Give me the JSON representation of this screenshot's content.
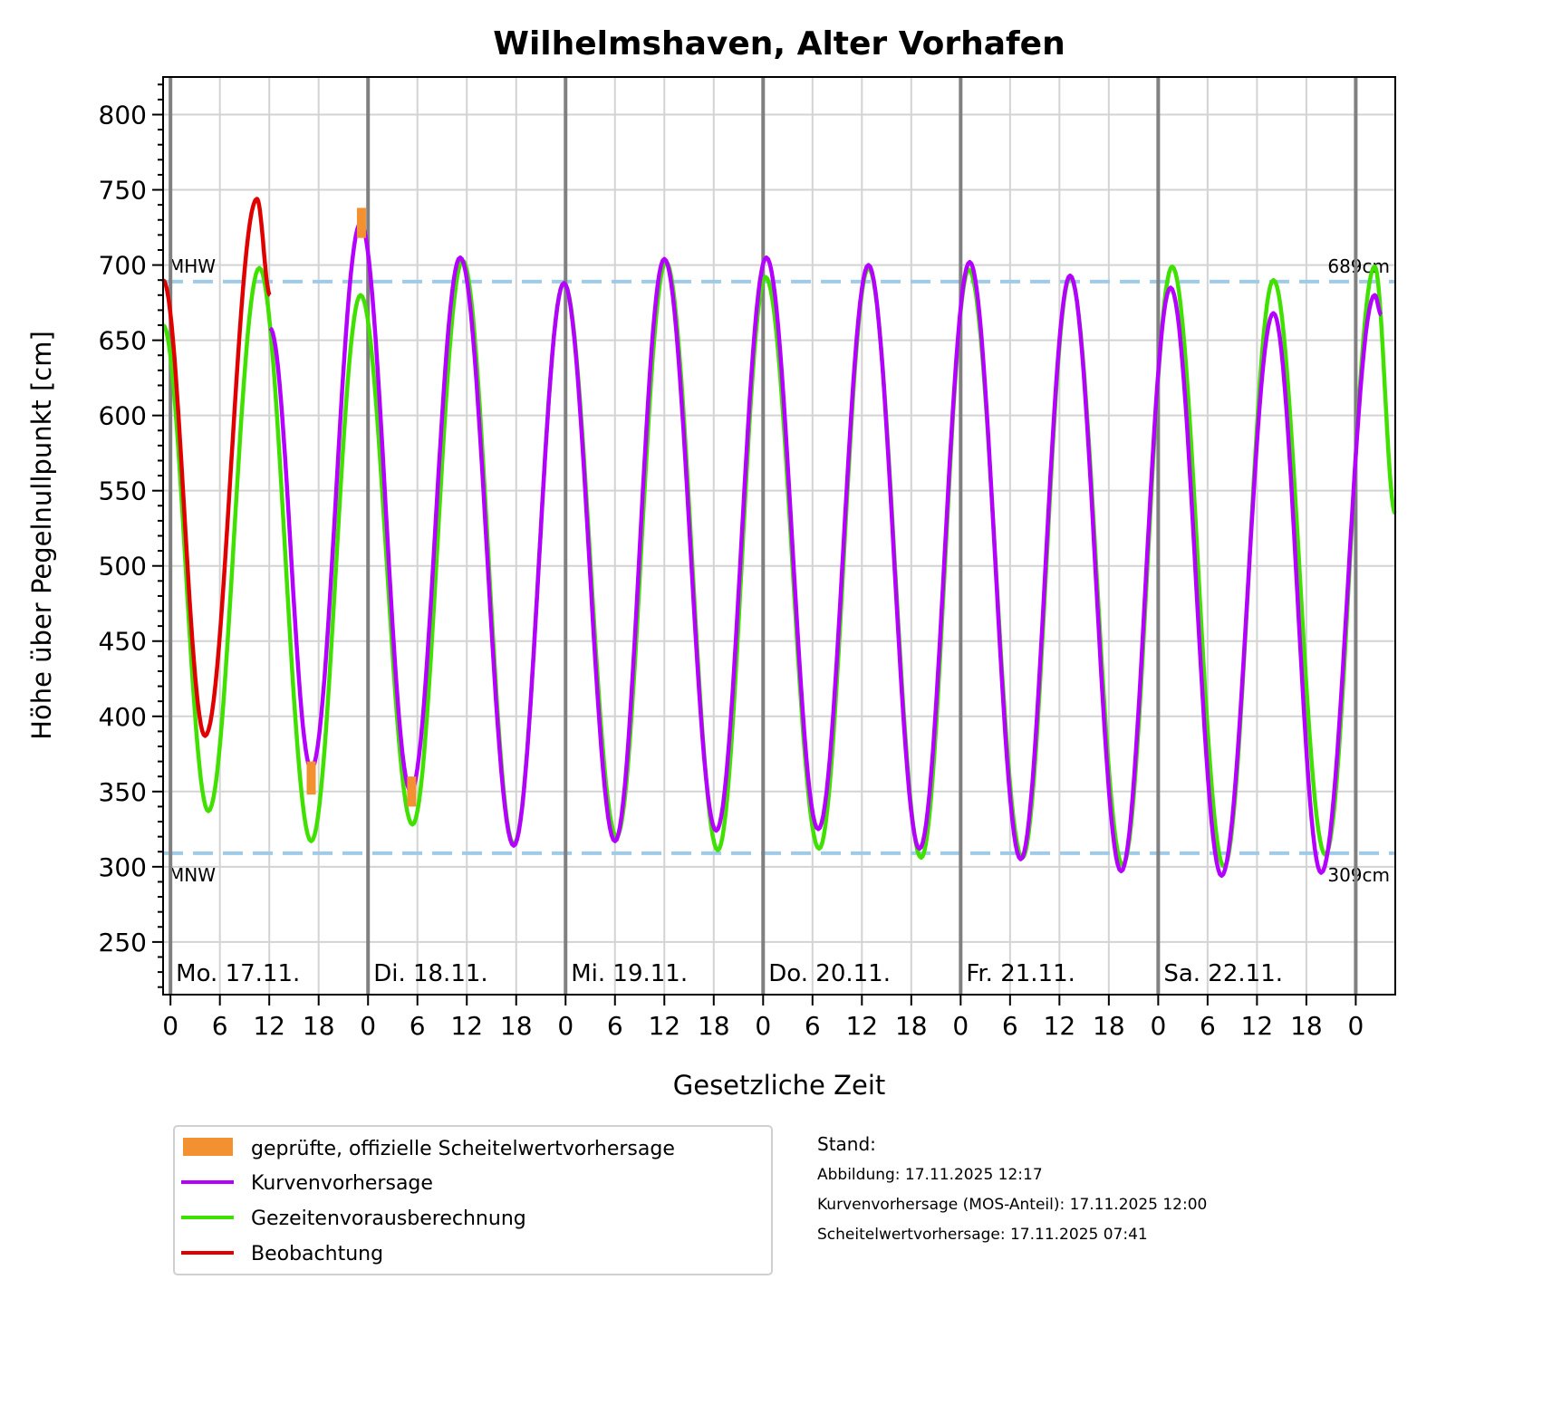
{
  "chart_data": {
    "type": "line",
    "title": "Wilhelmshaven, Alter Vorhafen",
    "xlabel": "Gesetzliche Zeit",
    "ylabel": "Höhe über Pegelnullpunkt [cm]",
    "xlim": [
      "2025-11-16 23:06",
      "2025-11-23 04:48"
    ],
    "ylim": [
      215,
      825
    ],
    "yticks": [
      250,
      300,
      350,
      400,
      450,
      500,
      550,
      600,
      650,
      700,
      750,
      800
    ],
    "y_minor_step": 10,
    "xtick_hours": [
      "0",
      "6",
      "12",
      "18"
    ],
    "day_labels": [
      {
        "date": "2025-11-17",
        "label": "Mo. 17.11."
      },
      {
        "date": "2025-11-18",
        "label": "Di. 18.11."
      },
      {
        "date": "2025-11-19",
        "label": "Mi. 19.11."
      },
      {
        "date": "2025-11-20",
        "label": "Do. 20.11."
      },
      {
        "date": "2025-11-21",
        "label": "Fr. 21.11."
      },
      {
        "date": "2025-11-22",
        "label": "Sa. 22.11."
      },
      {
        "date": "2025-11-23",
        "label": ""
      }
    ],
    "grid": true,
    "reference_lines": [
      {
        "name": "MHW",
        "value": 689,
        "value_label": "689cm",
        "color": "#a0cbe8"
      },
      {
        "name": "MNW",
        "value": 309,
        "value_label": "309cm",
        "color": "#a0cbe8"
      }
    ],
    "series": [
      {
        "name": "Gezeitenvorausberechnung",
        "color": "#40e000",
        "points": [
          [
            "2025-11-16 23:06",
            660
          ],
          [
            "2025-11-17 04:36",
            337
          ],
          [
            "2025-11-17 10:48",
            698
          ],
          [
            "2025-11-17 17:06",
            317
          ],
          [
            "2025-11-17 23:06",
            680
          ],
          [
            "2025-11-18 05:24",
            328
          ],
          [
            "2025-11-18 11:30",
            703
          ],
          [
            "2025-11-18 17:42",
            315
          ],
          [
            "2025-11-18 23:48",
            688
          ],
          [
            "2025-11-19 06:12",
            320
          ],
          [
            "2025-11-19 12:12",
            702
          ],
          [
            "2025-11-19 18:30",
            311
          ],
          [
            "2025-11-20 00:18",
            692
          ],
          [
            "2025-11-20 06:48",
            312
          ],
          [
            "2025-11-20 12:48",
            698
          ],
          [
            "2025-11-20 19:12",
            306
          ],
          [
            "2025-11-21 01:00",
            697
          ],
          [
            "2025-11-21 07:30",
            306
          ],
          [
            "2025-11-21 13:18",
            692
          ],
          [
            "2025-11-21 19:42",
            301
          ],
          [
            "2025-11-22 01:42",
            699
          ],
          [
            "2025-11-22 08:00",
            300
          ],
          [
            "2025-11-22 14:00",
            690
          ],
          [
            "2025-11-22 20:18",
            308
          ],
          [
            "2025-11-23 02:18",
            699
          ],
          [
            "2025-11-23 04:48",
            535
          ]
        ]
      },
      {
        "name": "Kurvenvorhersage",
        "color": "#b400ff",
        "points": [
          [
            "2025-11-17 12:06",
            658
          ],
          [
            "2025-11-17 17:06",
            365
          ],
          [
            "2025-11-17 23:06",
            728
          ],
          [
            "2025-11-18 05:12",
            350
          ],
          [
            "2025-11-18 11:12",
            705
          ],
          [
            "2025-11-18 17:42",
            314
          ],
          [
            "2025-11-18 23:48",
            688
          ],
          [
            "2025-11-19 06:00",
            317
          ],
          [
            "2025-11-19 12:00",
            704
          ],
          [
            "2025-11-19 18:18",
            324
          ],
          [
            "2025-11-20 00:24",
            705
          ],
          [
            "2025-11-20 06:42",
            325
          ],
          [
            "2025-11-20 12:48",
            700
          ],
          [
            "2025-11-20 19:00",
            312
          ],
          [
            "2025-11-21 01:06",
            702
          ],
          [
            "2025-11-21 07:18",
            305
          ],
          [
            "2025-11-21 13:18",
            693
          ],
          [
            "2025-11-21 19:30",
            297
          ],
          [
            "2025-11-22 01:30",
            685
          ],
          [
            "2025-11-22 07:42",
            294
          ],
          [
            "2025-11-22 14:00",
            668
          ],
          [
            "2025-11-22 19:48",
            296
          ],
          [
            "2025-11-23 02:18",
            680
          ],
          [
            "2025-11-23 03:06",
            667
          ]
        ]
      },
      {
        "name": "Beobachtung",
        "color": "#e00000",
        "points": [
          [
            "2025-11-16 23:06",
            690
          ],
          [
            "2025-11-17 04:12",
            387
          ],
          [
            "2025-11-17 10:30",
            744
          ],
          [
            "2025-11-17 12:06",
            680
          ]
        ]
      }
    ],
    "peak_forecast": {
      "name": "geprüfte, offizielle Scheitelwertvorhersage",
      "color": "#f39130",
      "ranges": [
        {
          "time": "2025-11-17 17:06",
          "low": 348,
          "high": 370
        },
        {
          "time": "2025-11-17 23:12",
          "low": 718,
          "high": 738
        },
        {
          "time": "2025-11-18 05:18",
          "low": 340,
          "high": 360
        }
      ]
    },
    "legend": {
      "placement": "bottom-left",
      "entries": [
        {
          "label": "geprüfte, offizielle Scheitelwertvorhersage",
          "color": "#f39130",
          "kind": "patch"
        },
        {
          "label": "Kurvenvorhersage",
          "color": "#b400ff",
          "kind": "line"
        },
        {
          "label": "Gezeitenvorausberechnung",
          "color": "#40e000",
          "kind": "line"
        },
        {
          "label": "Beobachtung",
          "color": "#e00000",
          "kind": "line"
        }
      ]
    }
  },
  "stand": {
    "heading": "Stand:",
    "lines": [
      "Abbildung: 17.11.2025 12:17",
      "Kurvenvorhersage (MOS-Anteil): 17.11.2025 12:00",
      "Scheitelwertvorhersage: 17.11.2025 07:41"
    ]
  }
}
